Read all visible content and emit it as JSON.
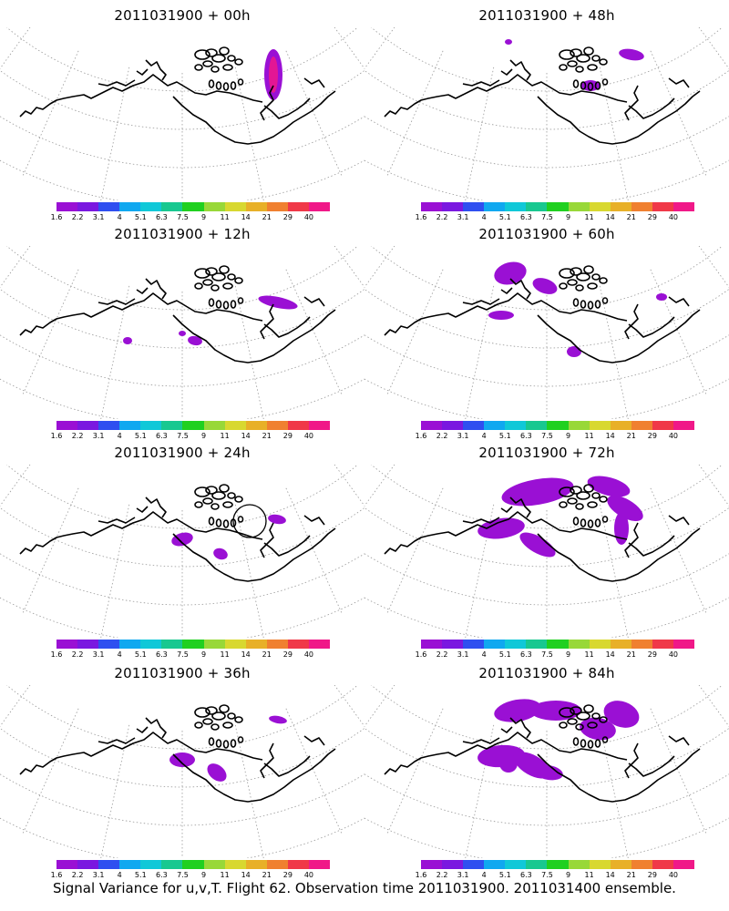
{
  "panels": [
    {
      "title": "2011031900 + 00h",
      "lead": "00h"
    },
    {
      "title": "2011031900 + 48h",
      "lead": "48h"
    },
    {
      "title": "2011031900 + 12h",
      "lead": "12h"
    },
    {
      "title": "2011031900 + 60h",
      "lead": "60h"
    },
    {
      "title": "2011031900 + 24h",
      "lead": "24h"
    },
    {
      "title": "2011031900 + 72h",
      "lead": "72h"
    },
    {
      "title": "2011031900 + 36h",
      "lead": "36h"
    },
    {
      "title": "2011031900 + 84h",
      "lead": "84h"
    }
  ],
  "colorbar": {
    "colors": [
      "#9a10d4",
      "#7a18e0",
      "#2f4ff0",
      "#10a8f0",
      "#10c8d8",
      "#18c890",
      "#20d020",
      "#98d838",
      "#d8d830",
      "#e8b028",
      "#f08030",
      "#f03848",
      "#f01888"
    ],
    "labels": [
      "1.6",
      "2.2",
      "3.1",
      "4",
      "5.1",
      "6.3",
      "7.5",
      "9",
      "11",
      "14",
      "21",
      "29",
      "40"
    ]
  },
  "caption": "Signal Variance for u,v,T. Flight 62. Observation time 2011031900. 2011031400 ensemble."
}
